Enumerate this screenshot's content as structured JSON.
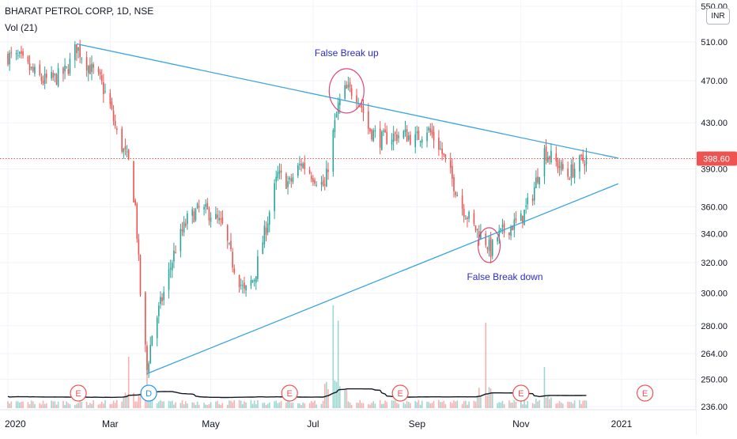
{
  "header": {
    "title": "BHARAT PETROL CORP, 1D, NSE",
    "volume_indicator": "Vol (21)",
    "currency": "INR"
  },
  "colors": {
    "up": "#26a69a",
    "down": "#ef5350",
    "trendline": "#3ba4e0",
    "annotation_text": "#2c2cc8",
    "annotation_circle": "#e0457b",
    "last_price_bg": "#ef5350",
    "volume_ma": "#131722",
    "event_earnings": "#ef5350",
    "event_dividend": "#2196f3"
  },
  "chart_data": {
    "type": "candlestick",
    "title": "BHARAT PETROL CORP, 1D, NSE",
    "x_ticks": [
      "2020",
      "Mar",
      "May",
      "Jul",
      "Sep",
      "Nov",
      "2021"
    ],
    "x_tick_dates": [
      "2020-01-01",
      "2020-03-02",
      "2020-05-01",
      "2020-07-01",
      "2020-09-01",
      "2020-11-02",
      "2021-01-01"
    ],
    "y_ticks": [
      236.0,
      250.0,
      264.0,
      280.0,
      300.0,
      320.0,
      340.0,
      360.0,
      390.0,
      430.0,
      470.0,
      510.0,
      550.0
    ],
    "y_tick_labels": [
      "236.00",
      "250.00",
      "264.00",
      "280.00",
      "300.00",
      "320.00",
      "340.00",
      "360.00",
      "390.00",
      "430.00",
      "470.00",
      "510.00",
      "550.00"
    ],
    "y_scale": "log",
    "ylim": [
      232,
      560
    ],
    "last_price": 398.6,
    "last_price_label": "398.60",
    "grid": true,
    "price_path": [
      [
        "2020-01-01",
        495
      ],
      [
        "2020-01-08",
        492
      ],
      [
        "2020-01-15",
        480
      ],
      [
        "2020-01-22",
        470
      ],
      [
        "2020-01-29",
        472
      ],
      [
        "2020-02-05",
        480
      ],
      [
        "2020-02-11",
        505
      ],
      [
        "2020-02-18",
        485
      ],
      [
        "2020-02-25",
        470
      ],
      [
        "2020-03-02",
        445
      ],
      [
        "2020-03-06",
        420
      ],
      [
        "2020-03-10",
        405
      ],
      [
        "2020-03-13",
        395
      ],
      [
        "2020-03-17",
        360
      ],
      [
        "2020-03-20",
        300
      ],
      [
        "2020-03-24",
        255
      ],
      [
        "2020-03-27",
        275
      ],
      [
        "2020-04-03",
        300
      ],
      [
        "2020-04-10",
        330
      ],
      [
        "2020-04-17",
        350
      ],
      [
        "2020-04-24",
        358
      ],
      [
        "2020-05-01",
        355
      ],
      [
        "2020-05-08",
        345
      ],
      [
        "2020-05-14",
        320
      ],
      [
        "2020-05-21",
        300
      ],
      [
        "2020-05-27",
        310
      ],
      [
        "2020-06-03",
        345
      ],
      [
        "2020-06-10",
        385
      ],
      [
        "2020-06-17",
        378
      ],
      [
        "2020-06-24",
        395
      ],
      [
        "2020-07-01",
        385
      ],
      [
        "2020-07-08",
        375
      ],
      [
        "2020-07-13",
        420
      ],
      [
        "2020-07-16",
        445
      ],
      [
        "2020-07-20",
        460
      ],
      [
        "2020-07-24",
        460
      ],
      [
        "2020-07-28",
        455
      ],
      [
        "2020-08-03",
        425
      ],
      [
        "2020-08-10",
        415
      ],
      [
        "2020-08-17",
        418
      ],
      [
        "2020-08-24",
        420
      ],
      [
        "2020-08-31",
        415
      ],
      [
        "2020-09-07",
        425
      ],
      [
        "2020-09-14",
        410
      ],
      [
        "2020-09-21",
        385
      ],
      [
        "2020-09-28",
        360
      ],
      [
        "2020-10-05",
        345
      ],
      [
        "2020-10-12",
        335
      ],
      [
        "2020-10-15",
        328
      ],
      [
        "2020-10-19",
        338
      ],
      [
        "2020-10-26",
        345
      ],
      [
        "2020-11-02",
        350
      ],
      [
        "2020-11-09",
        370
      ],
      [
        "2020-11-16",
        405
      ],
      [
        "2020-11-23",
        395
      ],
      [
        "2020-11-30",
        385
      ],
      [
        "2020-12-07",
        395
      ],
      [
        "2020-12-11",
        399
      ]
    ],
    "volume_spikes": [
      [
        "2020-03-13",
        0.5
      ],
      [
        "2020-03-24",
        0.65
      ],
      [
        "2020-07-13",
        1.0
      ],
      [
        "2020-07-16",
        0.85
      ],
      [
        "2020-10-12",
        0.83
      ],
      [
        "2020-11-16",
        0.4
      ]
    ],
    "trendlines": [
      {
        "name": "upper",
        "from": [
          "2020-02-11",
          508
        ],
        "to": [
          "2020-12-30",
          399
        ]
      },
      {
        "name": "lower",
        "from": [
          "2020-03-24",
          253
        ],
        "to": [
          "2020-12-30",
          378
        ]
      }
    ],
    "annotations": [
      {
        "text": "False Break up",
        "date": "2020-07-21",
        "price": 460
      },
      {
        "text": "False Break down",
        "date": "2020-10-14",
        "price": 332
      }
    ],
    "events": [
      {
        "label": "E",
        "date": "2020-02-12",
        "kind": "earnings"
      },
      {
        "label": "D",
        "date": "2020-03-25",
        "kind": "dividend"
      },
      {
        "label": "E",
        "date": "2020-06-17",
        "kind": "earnings"
      },
      {
        "label": "E",
        "date": "2020-08-22",
        "kind": "earnings"
      },
      {
        "label": "E",
        "date": "2020-11-02",
        "kind": "earnings"
      },
      {
        "label": "E",
        "date": "2021-01-15",
        "kind": "earnings"
      }
    ]
  }
}
